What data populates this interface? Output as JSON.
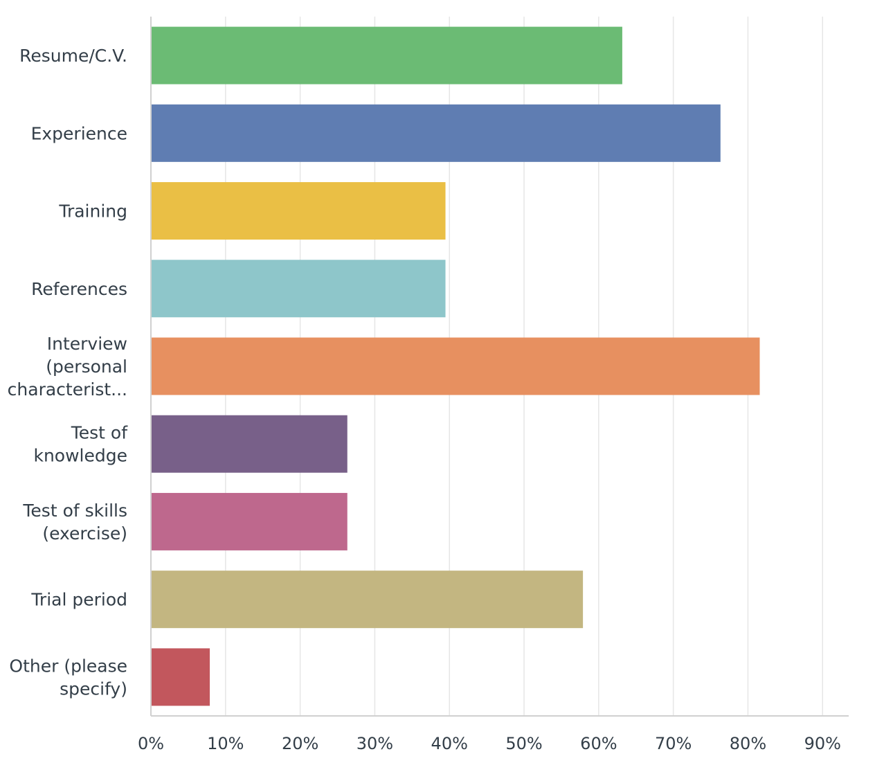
{
  "chart_data": {
    "type": "bar",
    "orientation": "horizontal",
    "categories": [
      [
        "Resume/C.V."
      ],
      [
        "Experience"
      ],
      [
        "Training"
      ],
      [
        "References"
      ],
      [
        "Interview",
        "(personal",
        "characterist..."
      ],
      [
        "Test of",
        "knowledge"
      ],
      [
        "Test of skills",
        "(exercise)"
      ],
      [
        "Trial period"
      ],
      [
        "Other (please",
        "specify)"
      ]
    ],
    "values": [
      63.16,
      76.32,
      39.47,
      39.47,
      81.58,
      26.32,
      26.32,
      57.89,
      7.89
    ],
    "colors": [
      "#6bbb74",
      "#5f7db2",
      "#eabf45",
      "#8ec6ca",
      "#e79060",
      "#786089",
      "#be688d",
      "#c3b681",
      "#c2575d"
    ],
    "xlim": [
      0,
      93.5
    ],
    "xticks": [
      0,
      10,
      20,
      30,
      40,
      50,
      60,
      70,
      80,
      90
    ],
    "xtick_labels": [
      "0%",
      "10%",
      "20%",
      "30%",
      "40%",
      "50%",
      "60%",
      "70%",
      "80%",
      "90%"
    ],
    "grid": true,
    "title": "",
    "xlabel": "",
    "ylabel": ""
  }
}
